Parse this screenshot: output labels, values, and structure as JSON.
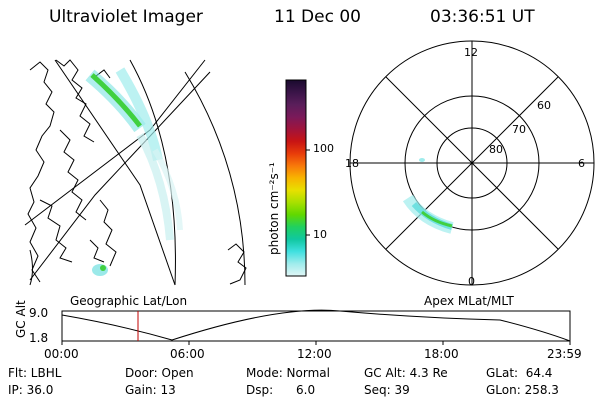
{
  "header": {
    "instrument": "Ultraviolet Imager",
    "date": "11 Dec 00",
    "time": "03:36:51 UT"
  },
  "colorbar": {
    "unit_label": "photon cm⁻²s⁻¹",
    "ticks": [
      "100",
      "10"
    ],
    "colors": [
      "#1a0a2e",
      "#3a1448",
      "#5a1e5a",
      "#7a1a5a",
      "#a0143c",
      "#c81414",
      "#e83c0a",
      "#f8780a",
      "#f8b400",
      "#e8e000",
      "#a8e000",
      "#60d800",
      "#20d060",
      "#10c8a0",
      "#40e0e0",
      "#a0ecec",
      "#e0f6f6"
    ]
  },
  "geo_panel": {
    "title": "Geographic Lat/Lon"
  },
  "polar_panel": {
    "title": "Apex MLat/MLT",
    "mlt_labels": {
      "top": "12",
      "left": "18",
      "right": "6",
      "bottom": "0"
    },
    "lat_labels": [
      "60",
      "70",
      "80"
    ]
  },
  "altitude_plot": {
    "y_label": "GC Alt",
    "y_ticks": [
      "9.0",
      "1.8"
    ],
    "x_ticks": [
      "00:00",
      "06:00",
      "12:00",
      "18:00",
      "23:59"
    ],
    "marker_time": "03:36"
  },
  "status": {
    "flt": "Flt: LBHL",
    "door": "Door: Open",
    "mode": "Mode: Normal",
    "gc_alt": "GC Alt: 4.3 Re",
    "glat": "GLat:  64.4",
    "ip": "IP: 36.0",
    "gain": "Gain: 13",
    "dsp": "Dsp:      6.0",
    "seq": "Seq: 39",
    "glon": "GLon: 258.3"
  },
  "accent_colors": {
    "marker": "#c00000",
    "arc_green": "#40d040",
    "arc_cyan": "#70e0e0"
  }
}
